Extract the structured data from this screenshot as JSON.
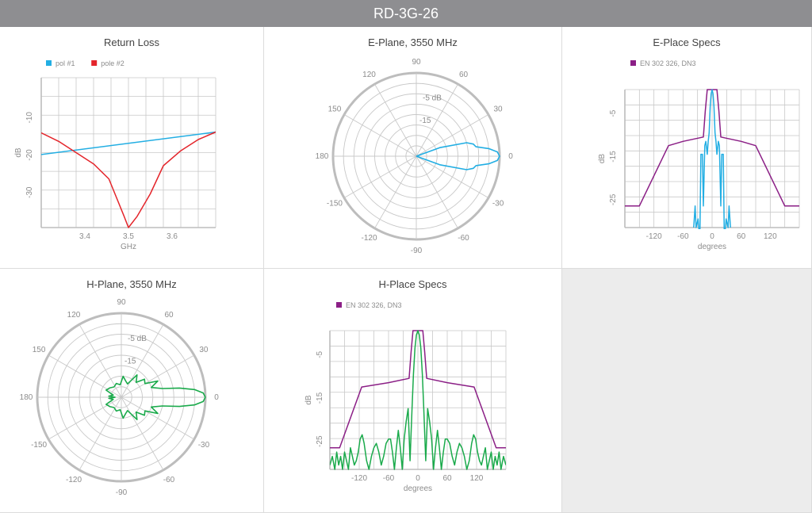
{
  "title": "RD-3G-26",
  "colors": {
    "blue": "#22aee3",
    "red": "#e4252b",
    "green": "#1aaa4b",
    "purple": "#8b1f86",
    "grid": "#c8c8c8",
    "frame": "#bdbdbd"
  },
  "panels": {
    "return_loss": {
      "title": "Return Loss"
    },
    "e_plane": {
      "title": "E-Plane, 3550 MHz"
    },
    "e_specs": {
      "title": "E-Place Specs"
    },
    "h_plane": {
      "title": "H-Plane, 3550 MHz"
    },
    "h_specs": {
      "title": "H-Place Specs"
    }
  },
  "chart_data": [
    {
      "id": "return_loss",
      "type": "line",
      "title": "Return Loss",
      "xlabel": "GHz",
      "ylabel": "dB",
      "xlim": [
        3.3,
        3.7
      ],
      "ylim": [
        -40,
        0
      ],
      "xticks": [
        3.4,
        3.5,
        3.6
      ],
      "xticklabels": [
        "3.4",
        "3.5",
        "3.6"
      ],
      "yticks": [
        -10,
        -20,
        -30
      ],
      "yticklabels": [
        "-10",
        "-20",
        "-30"
      ],
      "grid": true,
      "legend": "top-left",
      "series": [
        {
          "name": "pol #1",
          "color": "#22aee3",
          "x": [
            3.3,
            3.7
          ],
          "y": [
            -20.5,
            -14.5
          ]
        },
        {
          "name": "pole #2",
          "color": "#e4252b",
          "x": [
            3.3,
            3.34,
            3.38,
            3.42,
            3.455,
            3.49,
            3.5,
            3.52,
            3.55,
            3.58,
            3.62,
            3.66,
            3.7
          ],
          "y": [
            -14.7,
            -17,
            -20,
            -23,
            -27,
            -37,
            -40,
            -37,
            -31,
            -23.5,
            -19.5,
            -16.5,
            -14.5
          ]
        }
      ]
    },
    {
      "id": "e_plane",
      "type": "polar",
      "title": "E-Plane, 3550 MHz",
      "angles": [
        90,
        60,
        30,
        0,
        -30,
        -60,
        -90,
        -120,
        -150,
        180,
        150,
        120
      ],
      "radial_labels": [
        "-5 dB",
        "-15"
      ],
      "rlim_db": [
        -40,
        0
      ],
      "series": [
        {
          "color": "#22aee3",
          "angle": [
            -180,
            -90,
            -60,
            -30,
            -20,
            -15,
            -12,
            -9,
            -6,
            -3,
            0,
            3,
            6,
            9,
            12,
            15,
            20,
            30,
            60,
            90,
            180
          ],
          "db": [
            -40,
            -40,
            -40,
            -40,
            -28,
            -15,
            -12,
            -11,
            -5,
            -1,
            0,
            -1,
            -5,
            -11,
            -12,
            -15,
            -28,
            -40,
            -40,
            -40,
            -40
          ]
        }
      ]
    },
    {
      "id": "e_specs",
      "type": "line",
      "title": "E-Place Specs",
      "xlabel": "degrees",
      "ylabel": "dB",
      "xlim": [
        -180,
        180
      ],
      "ylim": [
        -32,
        0
      ],
      "xticks": [
        -120,
        -60,
        0,
        60,
        120
      ],
      "xticklabels": [
        "-120",
        "-60",
        "0",
        "60",
        "120"
      ],
      "yticks": [
        -5,
        -15,
        -25
      ],
      "yticklabels": [
        "-5",
        "-15",
        "-25"
      ],
      "grid": true,
      "legend": "top-left",
      "series": [
        {
          "name": "EN 302 326, DN3",
          "color": "#8b1f86",
          "x": [
            -180,
            -150,
            -90,
            -60,
            -18,
            -14,
            -10,
            -5,
            0,
            5,
            10,
            14,
            18,
            60,
            90,
            150,
            180
          ],
          "y": [
            -27,
            -27,
            -13,
            -12,
            -11,
            -5,
            0,
            0,
            0,
            0,
            0,
            -5,
            -11,
            -12,
            -13,
            -27,
            -27
          ]
        },
        {
          "name": "",
          "color": "#22aee3",
          "x": [
            -38,
            -35,
            -33,
            -29,
            -27,
            -25,
            -23,
            -20,
            -18,
            -15,
            -13,
            -10,
            -8,
            -6,
            -4,
            -2,
            0,
            2,
            4,
            6,
            8,
            10,
            13,
            15,
            18,
            20,
            23,
            25,
            27,
            29,
            33,
            35,
            38
          ],
          "y": [
            -32,
            -27,
            -32,
            -30,
            -33,
            -33,
            -15,
            -15,
            -27,
            -13,
            -12,
            -15,
            -12,
            -10,
            -4,
            -1,
            0,
            -1,
            -4,
            -10,
            -12,
            -15,
            -12,
            -13,
            -27,
            -15,
            -15,
            -33,
            -33,
            -30,
            -32,
            -27,
            -32
          ]
        }
      ]
    },
    {
      "id": "h_plane",
      "type": "polar",
      "title": "H-Plane, 3550 MHz",
      "angles": [
        90,
        60,
        30,
        0,
        -30,
        -60,
        -90,
        -120,
        -150,
        180,
        150,
        120
      ],
      "radial_labels": [
        "-5 dB",
        "-15"
      ],
      "rlim_db": [
        -40,
        0
      ],
      "series": [
        {
          "color": "#1aaa4b",
          "angle": [
            0,
            3,
            6,
            9,
            12,
            18,
            24,
            30,
            38,
            45,
            55,
            65,
            75,
            85,
            95,
            110,
            125,
            140,
            155,
            165,
            175,
            180,
            -175,
            -165,
            -155,
            -140,
            -125,
            -110,
            -95,
            -85,
            -75,
            -65,
            -55,
            -45,
            -38,
            -30,
            -24,
            -18,
            -12,
            -9,
            -6,
            -3,
            0
          ],
          "db": [
            0,
            -1,
            -5,
            -12,
            -20,
            -25,
            -21,
            -27,
            -26,
            -30,
            -27,
            -33,
            -32,
            -30,
            -34,
            -33,
            -34,
            -33,
            -32,
            -36,
            -34,
            -37,
            -34,
            -36,
            -32,
            -33,
            -34,
            -33,
            -34,
            -30,
            -32,
            -33,
            -27,
            -30,
            -26,
            -27,
            -21,
            -25,
            -20,
            -12,
            -5,
            -1,
            0
          ]
        }
      ]
    },
    {
      "id": "h_specs",
      "type": "line",
      "title": "H-Place Specs",
      "xlabel": "degrees",
      "ylabel": "dB",
      "xlim": [
        -180,
        180
      ],
      "ylim": [
        -32,
        0
      ],
      "xticks": [
        -120,
        -60,
        0,
        60,
        120
      ],
      "xticklabels": [
        "-120",
        "-60",
        "0",
        "60",
        "120"
      ],
      "yticks": [
        -5,
        -15,
        -25
      ],
      "yticklabels": [
        "-5",
        "-15",
        "-25"
      ],
      "grid": true,
      "legend": "top-left",
      "series": [
        {
          "name": "EN 302 326, DN3",
          "color": "#8b1f86",
          "x": [
            -180,
            -160,
            -115,
            -60,
            -18,
            -14,
            -10,
            -5,
            0,
            5,
            10,
            14,
            18,
            60,
            115,
            160,
            180
          ],
          "y": [
            -27,
            -27,
            -13,
            -12,
            -11,
            -5,
            0,
            0,
            0,
            0,
            0,
            -5,
            -11,
            -12,
            -13,
            -27,
            -27
          ]
        },
        {
          "name": "",
          "color": "#1aaa4b",
          "x": [
            -180,
            -175,
            -170,
            -166,
            -162,
            -158,
            -154,
            -150,
            -146,
            -142,
            -138,
            -134,
            -130,
            -126,
            -122,
            -118,
            -114,
            -110,
            -105,
            -100,
            -95,
            -90,
            -85,
            -80,
            -75,
            -70,
            -65,
            -60,
            -56,
            -52,
            -48,
            -44,
            -40,
            -36,
            -32,
            -28,
            -24,
            -20,
            -16,
            -12,
            -9,
            -6,
            -3,
            0,
            3,
            6,
            9,
            12,
            16,
            20,
            24,
            28,
            32,
            36,
            40,
            44,
            48,
            52,
            56,
            60,
            65,
            70,
            75,
            80,
            85,
            90,
            95,
            100,
            105,
            110,
            114,
            118,
            122,
            126,
            130,
            134,
            138,
            142,
            146,
            150,
            154,
            158,
            162,
            166,
            170,
            175,
            180
          ],
          "y": [
            -31,
            -29,
            -32,
            -28,
            -31,
            -29,
            -32,
            -28,
            -30,
            -32,
            -27,
            -29,
            -31,
            -30,
            -28,
            -25,
            -24,
            -26,
            -30,
            -32,
            -29,
            -27,
            -26,
            -28,
            -31,
            -29,
            -26,
            -25,
            -25,
            -28,
            -32,
            -27,
            -23,
            -27,
            -32,
            -25,
            -21,
            -18,
            -30,
            -18,
            -10,
            -4,
            -1,
            0,
            -1,
            -4,
            -10,
            -18,
            -30,
            -18,
            -21,
            -25,
            -32,
            -27,
            -23,
            -27,
            -32,
            -28,
            -25,
            -25,
            -26,
            -29,
            -31,
            -28,
            -26,
            -27,
            -29,
            -32,
            -30,
            -26,
            -24,
            -25,
            -28,
            -30,
            -31,
            -29,
            -27,
            -32,
            -30,
            -28,
            -32,
            -29,
            -31,
            -28,
            -32,
            -29,
            -31
          ]
        }
      ]
    }
  ]
}
